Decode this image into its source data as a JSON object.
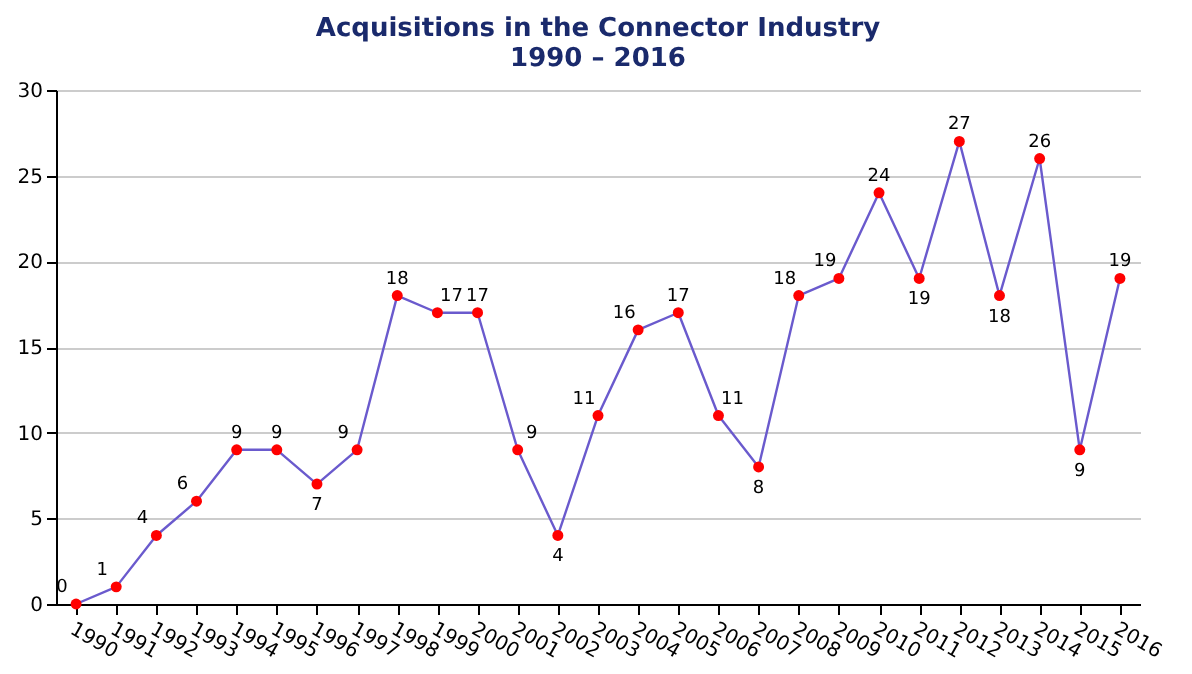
{
  "chart_data": {
    "type": "line",
    "title": "Acquisitions in the Connector Industry\n1990 – 2016",
    "categories": [
      "1990",
      "1991",
      "1992",
      "1993",
      "1994",
      "1995",
      "1996",
      "1997",
      "1998",
      "1999",
      "2000",
      "2001",
      "2002",
      "2003",
      "2004",
      "2005",
      "2006",
      "2007",
      "2008",
      "2009",
      "2010",
      "2011",
      "2012",
      "2013",
      "2014",
      "2015",
      "2016"
    ],
    "series": [
      {
        "color": "#6a5acd",
        "values": [
          0,
          1,
          4,
          6,
          9,
          9,
          7,
          9,
          18,
          17,
          17,
          9,
          4,
          11,
          16,
          17,
          11,
          8,
          18,
          19,
          24,
          19,
          27,
          18,
          26,
          9,
          19
        ]
      }
    ],
    "marker": "circle",
    "data_labels": true,
    "ylim": [
      0,
      30
    ],
    "yticks": [
      0,
      5,
      10,
      15,
      20,
      25,
      30
    ],
    "grid": "y"
  }
}
